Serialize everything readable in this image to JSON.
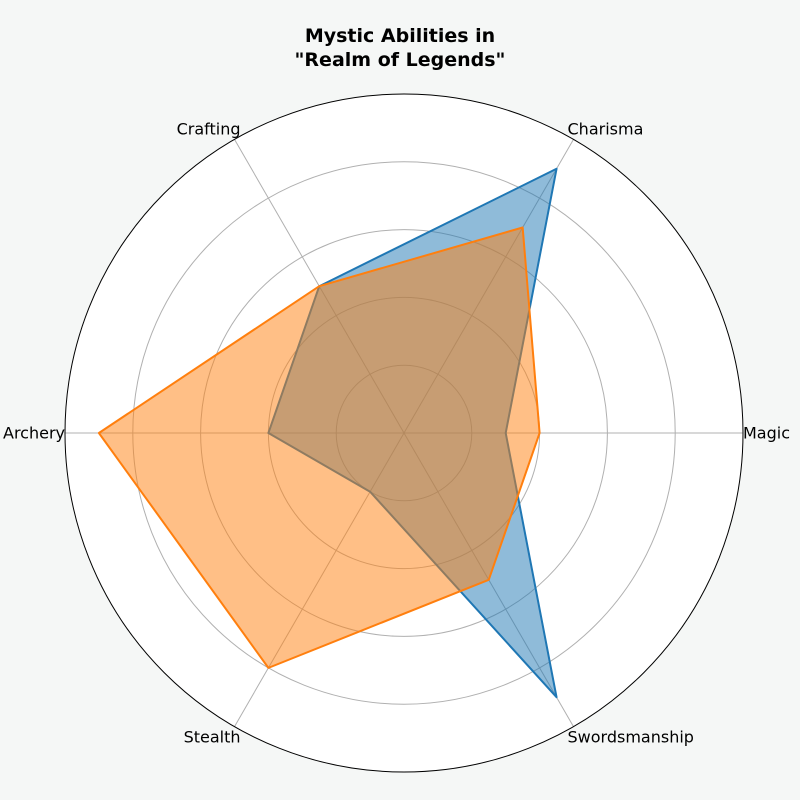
{
  "chart_data": {
    "type": "radar",
    "title": "Mystic Abilities in\n\"Realm of Legends\"",
    "axes": [
      "Magic",
      "Charisma",
      "Crafting",
      "Archery",
      "Stealth",
      "Swordsmanship"
    ],
    "rlim": [
      0,
      10
    ],
    "rgrid": [
      2,
      4,
      6,
      8,
      10
    ],
    "grid": true,
    "series": [
      {
        "values": [
          3,
          9,
          5,
          4,
          2,
          9
        ],
        "color": "#1f77b4",
        "fill_color": "#1f77b4",
        "fill_opacity": 0.5
      },
      {
        "values": [
          4,
          7,
          5,
          9,
          8,
          5
        ],
        "color": "#ff7f0e",
        "fill_color": "#ff7f0e",
        "fill_opacity": 0.5
      }
    ]
  },
  "colors": {
    "background": "#f5f7f6",
    "plot_background": "#ffffff",
    "grid": "#b0b0b0"
  }
}
